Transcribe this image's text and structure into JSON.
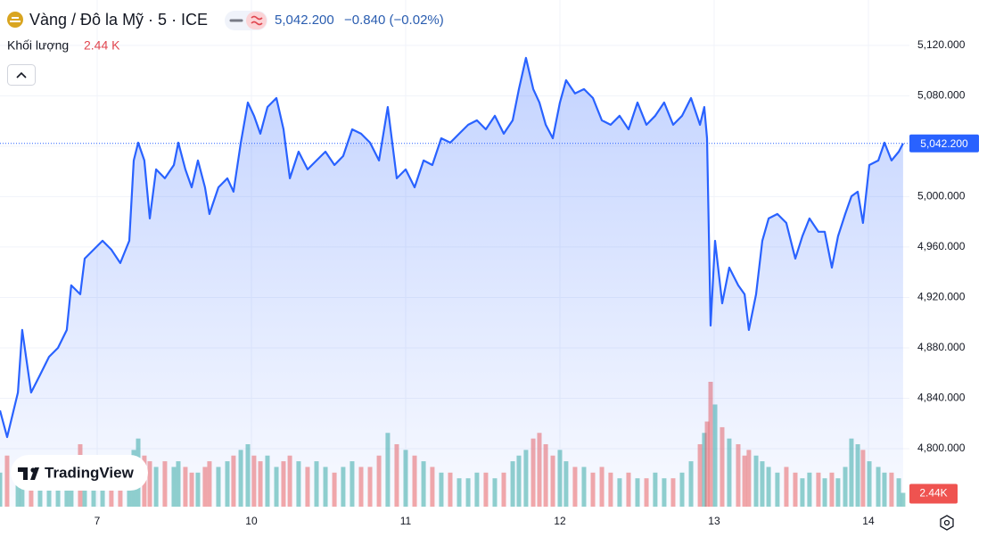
{
  "chart_data": {
    "type": "area",
    "title": "Vàng / Đô la Mỹ · 5 · ICE",
    "price": "5,042.200",
    "change": "−0.840 (−0.02%)",
    "volume_title": "Khối lượng",
    "volume_text": "2.44 K",
    "brand": "TradingView",
    "color": "#2962ff",
    "grid": true,
    "xlim": [
      0.37,
      6.266
    ],
    "xticks": [
      {
        "value": 1,
        "label": "7"
      },
      {
        "value": 2,
        "label": "10"
      },
      {
        "value": 3,
        "label": "11"
      },
      {
        "value": 4,
        "label": "12"
      },
      {
        "value": 5,
        "label": "13"
      },
      {
        "value": 6,
        "label": "14"
      }
    ],
    "ylim": [
      4754,
      5156
    ],
    "yticks": [
      {
        "value": 4800,
        "label": "4,800.000"
      },
      {
        "value": 4840,
        "label": "4,840.000"
      },
      {
        "value": 4880,
        "label": "4,880.000"
      },
      {
        "value": 4920,
        "label": "4,920.000"
      },
      {
        "value": 4960,
        "label": "4,960.000"
      },
      {
        "value": 5000,
        "label": "5,000.000"
      },
      {
        "value": 5040,
        "label": "5,040.000"
      },
      {
        "value": 5080,
        "label": "5,080.000"
      },
      {
        "value": 5120,
        "label": "5,120.000"
      }
    ],
    "x": [
      0.37,
      0.416,
      0.486,
      0.514,
      0.572,
      0.63,
      0.688,
      0.746,
      0.803,
      0.832,
      0.89,
      0.919,
      0.977,
      1.035,
      1.092,
      1.15,
      1.208,
      1.237,
      1.266,
      1.306,
      1.341,
      1.382,
      1.439,
      1.497,
      1.526,
      1.572,
      1.613,
      1.653,
      1.699,
      1.728,
      1.786,
      1.844,
      1.884,
      1.931,
      1.977,
      2.017,
      2.058,
      2.104,
      2.162,
      2.208,
      2.249,
      2.306,
      2.364,
      2.422,
      2.48,
      2.538,
      2.595,
      2.653,
      2.711,
      2.769,
      2.827,
      2.884,
      2.942,
      3.0,
      3.058,
      3.116,
      3.173,
      3.231,
      3.289,
      3.347,
      3.405,
      3.462,
      3.52,
      3.578,
      3.636,
      3.694,
      3.734,
      3.78,
      3.827,
      3.867,
      3.908,
      3.954,
      4.0,
      4.04,
      4.098,
      4.156,
      4.214,
      4.272,
      4.329,
      4.387,
      4.445,
      4.503,
      4.561,
      4.618,
      4.676,
      4.734,
      4.792,
      4.85,
      4.908,
      4.936,
      4.954,
      4.977,
      5.006,
      5.052,
      5.098,
      5.156,
      5.197,
      5.225,
      5.272,
      5.312,
      5.353,
      5.41,
      5.468,
      5.526,
      5.572,
      5.618,
      5.676,
      5.717,
      5.763,
      5.803,
      5.85,
      5.89,
      5.931,
      5.965,
      6.006,
      6.064,
      6.104,
      6.15,
      6.197,
      6.225
    ],
    "values": [
      4830.4,
      4809.2,
      4844.6,
      4894.2,
      4844.6,
      4858.7,
      4872.9,
      4880,
      4894.2,
      4929.6,
      4922.5,
      4950.8,
      4957.9,
      4965,
      4957.9,
      4947.3,
      4965,
      5028.7,
      5042.8,
      5028.7,
      4982.7,
      5021.6,
      5014.5,
      5025.1,
      5042.8,
      5021.6,
      5007.4,
      5028.7,
      5007.4,
      4986.2,
      5007.4,
      5014.5,
      5003.9,
      5042.8,
      5074.7,
      5064.1,
      5049.9,
      5071.1,
      5078.2,
      5053.4,
      5014.5,
      5035.7,
      5021.6,
      5028.7,
      5035.7,
      5025.1,
      5032.2,
      5053.4,
      5049.9,
      5042.8,
      5028.7,
      5071.1,
      5014.5,
      5021.6,
      5007.4,
      5028.7,
      5025.1,
      5046.3,
      5042.8,
      5049.9,
      5057,
      5060.5,
      5053.4,
      5064.1,
      5049.9,
      5060.5,
      5085.3,
      5110.1,
      5085.3,
      5074.7,
      5057,
      5046.3,
      5074.7,
      5092.4,
      5081.8,
      5085.3,
      5078.2,
      5060.5,
      5057,
      5064.1,
      5053.4,
      5074.7,
      5057,
      5064.1,
      5074.7,
      5057,
      5064.1,
      5078.2,
      5057,
      5071.1,
      5046.3,
      4897.7,
      4964.9,
      4915.4,
      4943.7,
      4929.6,
      4922.5,
      4894.2,
      4922.5,
      4965,
      4982.7,
      4986.2,
      4979.1,
      4950.8,
      4968.5,
      4982.7,
      4972.1,
      4972.1,
      4943.7,
      4968.5,
      4986.2,
      5000.3,
      5003.9,
      4979.1,
      5025.1,
      5028.7,
      5042.8,
      5028.7,
      5035.7,
      5042.2
    ],
    "volume": {
      "up_color": "rgba(38,166,154,0.5)",
      "down_color": "rgba(239,83,80,0.5)",
      "values": [
        6,
        9,
        8,
        7,
        6,
        6,
        5,
        6,
        7,
        6,
        11,
        8,
        7,
        8,
        7,
        6,
        9,
        10,
        12,
        9,
        8,
        7,
        8,
        7,
        8,
        7,
        6,
        6,
        7,
        8,
        7,
        8,
        9,
        10,
        11,
        9,
        8,
        9,
        7,
        8,
        9,
        8,
        7,
        8,
        7,
        6,
        7,
        8,
        7,
        7,
        9,
        13,
        11,
        10,
        9,
        8,
        7,
        6,
        6,
        5,
        5,
        6,
        6,
        5,
        6,
        8,
        9,
        10,
        12,
        13,
        11,
        9,
        10,
        8,
        7,
        7,
        6,
        7,
        6,
        5,
        6,
        5,
        5,
        6,
        5,
        5,
        6,
        8,
        11,
        13,
        15,
        22,
        18,
        14,
        12,
        11,
        9,
        10,
        9,
        8,
        7,
        6,
        7,
        6,
        5,
        6,
        6,
        5,
        6,
        5,
        7,
        12,
        11,
        10,
        8,
        7,
        6,
        6,
        5,
        2.44
      ]
    },
    "last_price": {
      "value": 5042.2,
      "label": "5,042.200"
    },
    "last_volume": {
      "value": 2.44,
      "label": "2.44K"
    }
  }
}
